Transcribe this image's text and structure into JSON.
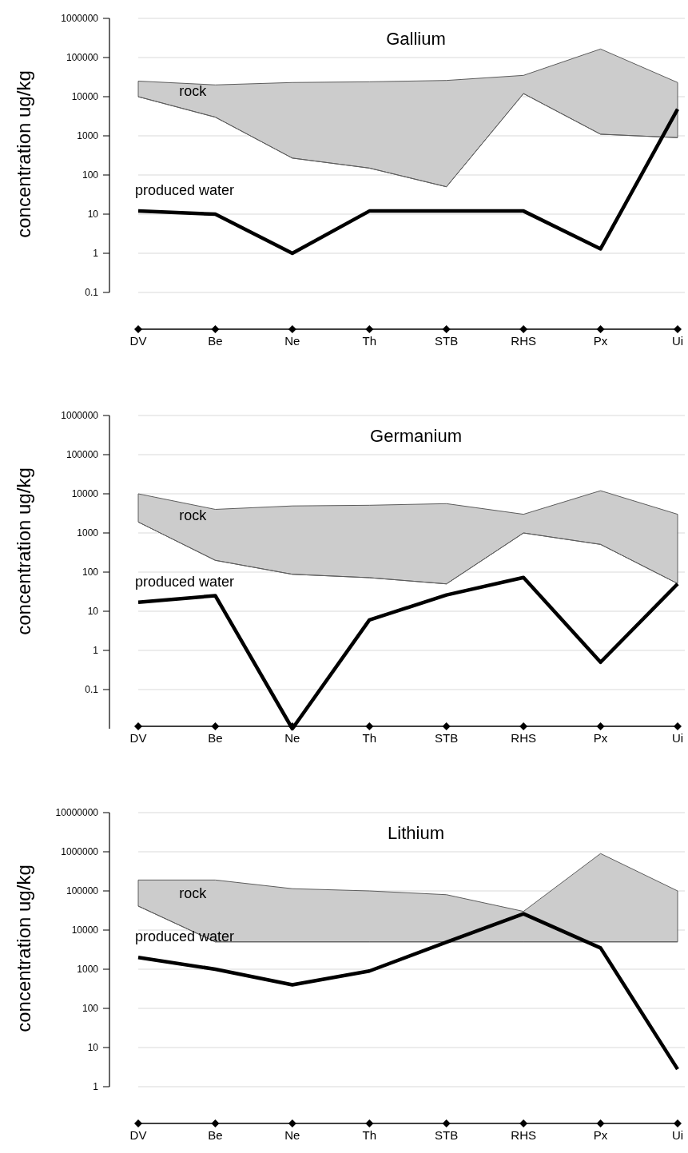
{
  "chart_data": [
    {
      "type": "line",
      "title": "Gallium",
      "ylabel": "concentration ug/kg",
      "log": "y",
      "grid": "y",
      "legend": false,
      "categories": [
        "DV",
        "Be",
        "Ne",
        "Th",
        "STB",
        "RHS",
        "Px",
        "Ui"
      ],
      "ylim": [
        0.1,
        1000000
      ],
      "yticks": [
        0.1,
        1,
        10,
        100,
        1000,
        10000,
        100000,
        1000000
      ],
      "series": [
        {
          "name": "rock",
          "type": "line",
          "color": "#5d5d5d",
          "values": [
            10000,
            3000,
            270,
            150,
            50,
            12000,
            1100,
            900
          ],
          "lower": [
            10000,
            3000,
            270,
            150,
            50,
            12000,
            1100,
            900
          ],
          "upper": [
            25000,
            20000,
            23000,
            24000,
            26000,
            35000,
            165000,
            23000
          ]
        },
        {
          "name": "produced water",
          "type": "line",
          "color": "#000000",
          "values": [
            12,
            10,
            1,
            12,
            12,
            12,
            1.3,
            4800
          ]
        }
      ]
    },
    {
      "type": "line",
      "title": "Germanium",
      "ylabel": "concentration ug/kg",
      "log": "y",
      "grid": "y",
      "legend": false,
      "categories": [
        "DV",
        "Be",
        "Ne",
        "Th",
        "STB",
        "RHS",
        "Px",
        "Ui"
      ],
      "ylim": [
        0.01,
        1000000
      ],
      "yticks": [
        0.1,
        1,
        10,
        100,
        1000,
        10000,
        100000,
        1000000
      ],
      "series": [
        {
          "name": "rock",
          "type": "line",
          "color": "#5d5d5d",
          "values": [
            1900,
            200,
            88,
            72,
            50,
            1000,
            510,
            51
          ],
          "lower": [
            1900,
            200,
            88,
            72,
            50,
            1000,
            510,
            51
          ],
          "upper": [
            10000,
            4000,
            4900,
            5100,
            5600,
            3000,
            12000,
            3000
          ]
        },
        {
          "name": "produced water",
          "type": "line",
          "color": "#000000",
          "values": [
            17,
            25,
            0.01,
            6,
            26,
            73,
            0.5,
            50
          ]
        }
      ]
    },
    {
      "type": "line",
      "title": "Lithium",
      "ylabel": "concentration ug/kg",
      "log": "y",
      "grid": "y",
      "legend": false,
      "categories": [
        "DV",
        "Be",
        "Ne",
        "Th",
        "STB",
        "RHS",
        "Px",
        "Ui"
      ],
      "ylim": [
        1,
        10000000
      ],
      "yticks": [
        1,
        10,
        100,
        1000,
        10000,
        100000,
        1000000,
        10000000
      ],
      "series": [
        {
          "name": "rock",
          "type": "line",
          "color": "#5d5d5d",
          "values": [
            41000,
            5000,
            5000,
            5000,
            5000,
            5000,
            5000,
            5000
          ],
          "lower": [
            41000,
            5000,
            5000,
            5000,
            5000,
            5000,
            5000,
            5000
          ],
          "upper": [
            190000,
            190000,
            114000,
            100000,
            80000,
            30000,
            900000,
            100000
          ]
        },
        {
          "name": "produced water",
          "type": "line",
          "color": "#000000",
          "values": [
            2000,
            1000,
            400,
            900,
            4900,
            26000,
            3500,
            2.8
          ]
        }
      ]
    }
  ]
}
